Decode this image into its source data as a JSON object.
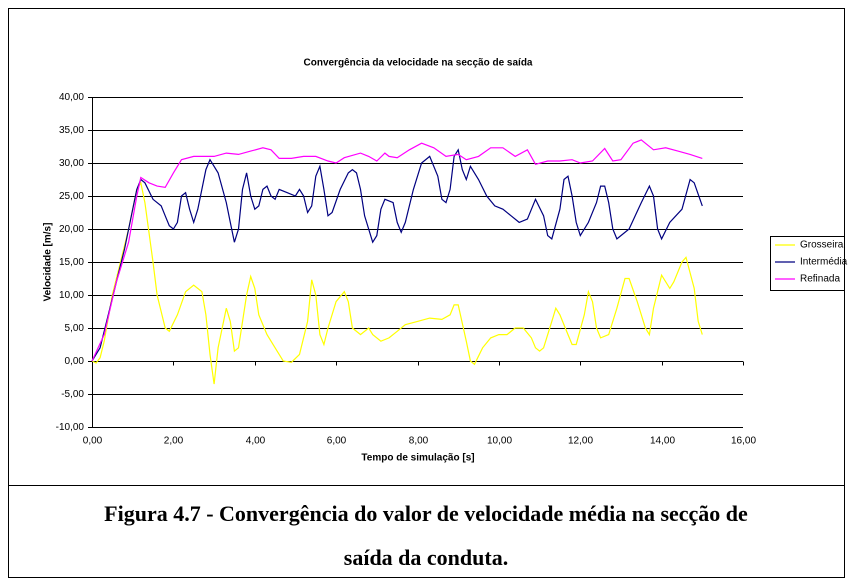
{
  "chart_data": {
    "type": "line",
    "title": "Convergência da velocidade na secção de saída",
    "xlabel": "Tempo de simulação [s]",
    "ylabel": "Velocidade [m/s]",
    "xlim": [
      0,
      16
    ],
    "xticks": [
      {
        "value": 0,
        "label": "0,00"
      },
      {
        "value": 2,
        "label": "2,00"
      },
      {
        "value": 4,
        "label": "4,00"
      },
      {
        "value": 6,
        "label": "6,00"
      },
      {
        "value": 8,
        "label": "8,00"
      },
      {
        "value": 10,
        "label": "10,00"
      },
      {
        "value": 12,
        "label": "12,00"
      },
      {
        "value": 14,
        "label": "14,00"
      },
      {
        "value": 16,
        "label": "16,00"
      }
    ],
    "ylim": [
      -10,
      40
    ],
    "yticks": [
      {
        "value": -10,
        "label": "-10,00"
      },
      {
        "value": -5,
        "label": "-5,00"
      },
      {
        "value": 0,
        "label": "0,00"
      },
      {
        "value": 5,
        "label": "5,00"
      },
      {
        "value": 10,
        "label": "10,00"
      },
      {
        "value": 15,
        "label": "15,00"
      },
      {
        "value": 20,
        "label": "20,00"
      },
      {
        "value": 25,
        "label": "25,00"
      },
      {
        "value": 30,
        "label": "30,00"
      },
      {
        "value": 35,
        "label": "35,00"
      },
      {
        "value": 40,
        "label": "40,00"
      }
    ],
    "grid": true,
    "legend": "right",
    "series": [
      {
        "name": "Grosseira",
        "color": "#ffff00",
        "x": [
          0,
          0.1,
          0.2,
          0.3,
          0.5,
          0.7,
          0.9,
          1.1,
          1.2,
          1.3,
          1.5,
          1.6,
          1.8,
          1.9,
          2.1,
          2.3,
          2.5,
          2.7,
          2.8,
          2.9,
          3.0,
          3.1,
          3.3,
          3.4,
          3.5,
          3.6,
          3.8,
          3.9,
          4.0,
          4.1,
          4.3,
          4.5,
          4.7,
          4.9,
          5.1,
          5.3,
          5.4,
          5.5,
          5.6,
          5.7,
          5.8,
          6.0,
          6.2,
          6.3,
          6.4,
          6.6,
          6.8,
          6.9,
          7.1,
          7.3,
          7.5,
          7.7,
          8.0,
          8.3,
          8.6,
          8.8,
          8.9,
          9.0,
          9.2,
          9.3,
          9.4,
          9.6,
          9.8,
          10.0,
          10.2,
          10.4,
          10.6,
          10.8,
          10.9,
          11.0,
          11.1,
          11.3,
          11.4,
          11.5,
          11.7,
          11.8,
          11.9,
          12.1,
          12.2,
          12.3,
          12.4,
          12.5,
          12.7,
          12.9,
          13.1,
          13.2,
          13.4,
          13.6,
          13.7,
          13.8,
          14.0,
          14.2,
          14.3,
          14.5,
          14.6,
          14.8,
          14.9,
          15.0
        ],
        "values": [
          0,
          -0.3,
          0.5,
          3,
          10,
          15,
          20,
          26,
          27,
          24,
          15,
          10,
          5,
          4.5,
          7,
          10.5,
          11.5,
          10.5,
          7,
          1,
          -3.5,
          2,
          8,
          6,
          1.5,
          2,
          10,
          12.8,
          11,
          7,
          4,
          2,
          0,
          -0.2,
          1,
          6,
          12.3,
          10,
          4,
          2.5,
          5,
          9,
          10.5,
          9,
          5,
          4,
          5,
          4,
          3,
          3.5,
          4.5,
          5.5,
          6,
          6.5,
          6.3,
          7,
          8.5,
          8.5,
          3,
          0,
          -0.5,
          2,
          3.5,
          4,
          4,
          5,
          5,
          3.5,
          2,
          1.5,
          2,
          6,
          8,
          7,
          4,
          2.5,
          2.5,
          7,
          10.5,
          9,
          5,
          3.5,
          4,
          8,
          12.5,
          12.5,
          9,
          5,
          4,
          8,
          13,
          11,
          12,
          15,
          15.7,
          11,
          6,
          4
        ]
      },
      {
        "name": "Intermédia",
        "color": "#000080",
        "x": [
          0,
          0.2,
          0.4,
          0.6,
          0.8,
          1.0,
          1.1,
          1.2,
          1.3,
          1.5,
          1.7,
          1.8,
          1.9,
          2.0,
          2.1,
          2.2,
          2.3,
          2.4,
          2.5,
          2.6,
          2.8,
          2.9,
          3.1,
          3.3,
          3.4,
          3.5,
          3.6,
          3.7,
          3.8,
          3.9,
          4.0,
          4.1,
          4.2,
          4.3,
          4.4,
          4.5,
          4.6,
          4.8,
          5.0,
          5.1,
          5.2,
          5.3,
          5.4,
          5.5,
          5.6,
          5.7,
          5.8,
          5.9,
          6.1,
          6.3,
          6.4,
          6.5,
          6.6,
          6.7,
          6.9,
          7.0,
          7.1,
          7.2,
          7.4,
          7.5,
          7.6,
          7.7,
          7.9,
          8.1,
          8.3,
          8.5,
          8.6,
          8.7,
          8.8,
          8.9,
          9.0,
          9.1,
          9.2,
          9.3,
          9.5,
          9.7,
          9.9,
          10.1,
          10.3,
          10.5,
          10.7,
          10.9,
          11.1,
          11.2,
          11.3,
          11.5,
          11.6,
          11.7,
          11.8,
          11.9,
          12.0,
          12.2,
          12.4,
          12.5,
          12.6,
          12.7,
          12.8,
          12.9,
          13.2,
          13.5,
          13.7,
          13.8,
          13.9,
          14.0,
          14.2,
          14.5,
          14.7,
          14.8,
          15.0
        ],
        "values": [
          0,
          2,
          7,
          12,
          17,
          23,
          26,
          27.5,
          27,
          24.5,
          23.5,
          22,
          20.5,
          20,
          21,
          25,
          25.5,
          23,
          21,
          23,
          29,
          30.5,
          28.5,
          24,
          21,
          18,
          20,
          26,
          28.5,
          25,
          23,
          23.5,
          26,
          26.5,
          25,
          24.5,
          26,
          25.5,
          25,
          26,
          25,
          22.5,
          23.5,
          28,
          29.5,
          26,
          22,
          22.5,
          26,
          28.5,
          29,
          28.5,
          26,
          22,
          18,
          19,
          23,
          24.5,
          24,
          21,
          19.5,
          21,
          26,
          30,
          31,
          28,
          24.5,
          24,
          26,
          31,
          32,
          29,
          27.5,
          29.5,
          27.5,
          25,
          23.5,
          23,
          22,
          21,
          21.5,
          24.5,
          22,
          19,
          18.5,
          23,
          27.5,
          28,
          25,
          21,
          19,
          21,
          24,
          26.5,
          26.5,
          24,
          20,
          18.5,
          20,
          24,
          26.5,
          25,
          20,
          18.5,
          21,
          23,
          27.5,
          27,
          23.5
        ]
      },
      {
        "name": "Refinada",
        "color": "#ff00ff",
        "x": [
          0,
          0.3,
          0.6,
          0.9,
          1.1,
          1.2,
          1.4,
          1.6,
          1.8,
          2.0,
          2.2,
          2.5,
          2.8,
          3.0,
          3.3,
          3.6,
          3.9,
          4.2,
          4.4,
          4.6,
          4.9,
          5.2,
          5.5,
          5.8,
          6.0,
          6.2,
          6.6,
          6.8,
          7.0,
          7.2,
          7.3,
          7.5,
          7.8,
          8.1,
          8.4,
          8.7,
          9.0,
          9.2,
          9.5,
          9.8,
          10.1,
          10.4,
          10.7,
          10.9,
          11.2,
          11.5,
          11.8,
          12.0,
          12.3,
          12.6,
          12.8,
          13.0,
          13.3,
          13.5,
          13.8,
          14.1,
          14.4,
          14.7,
          15.0
        ],
        "values": [
          0,
          4,
          12,
          18,
          25,
          27.8,
          27,
          26.5,
          26.3,
          28.5,
          30.5,
          31,
          31,
          31,
          31.5,
          31.3,
          31.8,
          32.3,
          32,
          30.7,
          30.7,
          31,
          31,
          30.3,
          30,
          30.8,
          31.5,
          31,
          30.3,
          31.5,
          31,
          30.8,
          32,
          33,
          32.3,
          31,
          31.3,
          30.5,
          31,
          32.3,
          32.3,
          31,
          32,
          29.8,
          30.3,
          30.3,
          30.5,
          30,
          30.3,
          32.2,
          30.3,
          30.5,
          33,
          33.5,
          32,
          32.3,
          31.8,
          31.3,
          30.7
        ]
      }
    ]
  },
  "caption": [
    "Figura 4.7 - Convergência do valor de velocidade média na secção de",
    "saída da conduta."
  ]
}
